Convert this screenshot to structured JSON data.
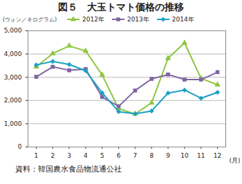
{
  "chart_data": {
    "type": "line",
    "title": "図５　大玉トマト価格の推移",
    "y_label": "(ウォン／キログラム)",
    "x_label": "(月)",
    "source": "資料：韓国農水食品物流通公社",
    "x": [
      1,
      2,
      3,
      4,
      5,
      6,
      7,
      8,
      9,
      10,
      11,
      12
    ],
    "xlim": [
      0.5,
      12.5
    ],
    "xticks": [
      1,
      2,
      3,
      4,
      5,
      6,
      7,
      8,
      9,
      10,
      11,
      12
    ],
    "ylim": [
      0,
      5000
    ],
    "yticks": [
      0,
      {
        "value": 1000,
        "label": "1,000"
      },
      {
        "value": 2000,
        "label": "2,000"
      },
      {
        "value": 3000,
        "label": "3,000"
      },
      {
        "value": 4000,
        "label": "4,000"
      },
      {
        "value": 5000,
        "label": "5,000"
      }
    ],
    "grid": true,
    "legend": "top",
    "series": [
      {
        "name": "2012年",
        "color": "#8dc63f",
        "marker": "triangle",
        "values": [
          3450,
          4020,
          4350,
          4130,
          3100,
          1650,
          1420,
          1900,
          3820,
          4480,
          2950,
          2680
        ]
      },
      {
        "name": "2013年",
        "color": "#8064a2",
        "marker": "square",
        "values": [
          3020,
          3450,
          3300,
          3350,
          2150,
          1750,
          2430,
          2930,
          3120,
          2900,
          2900,
          3220
        ]
      },
      {
        "name": "2014年",
        "color": "#1ba1c6",
        "marker": "diamond",
        "values": [
          3530,
          3680,
          3550,
          3280,
          2330,
          1520,
          1430,
          1550,
          2320,
          2450,
          2100,
          2350
        ]
      }
    ]
  }
}
